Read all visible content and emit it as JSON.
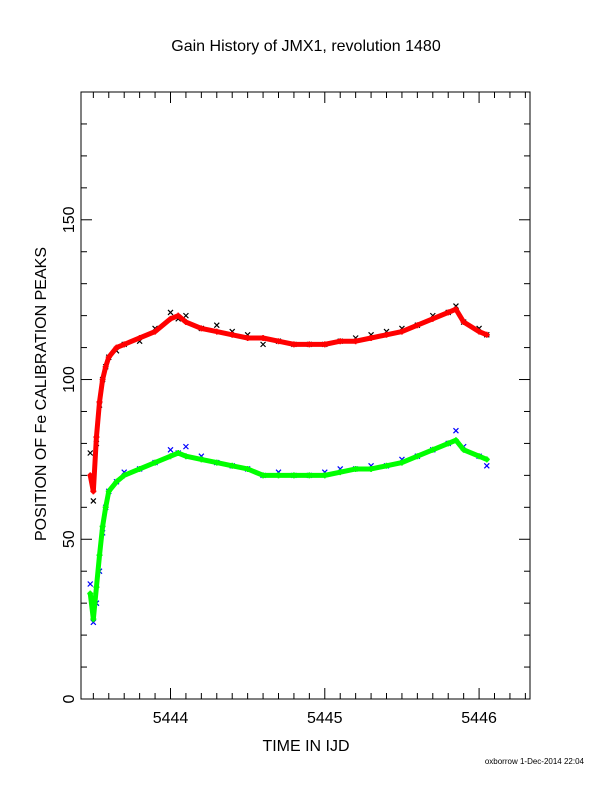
{
  "page": {
    "title": "Gain History of JMX1, revolution 1480",
    "credit": "oxborrow 1-Dec-2014 22:04"
  },
  "chart_data": {
    "type": "scatter",
    "title": "Gain History of JMX1, revolution 1480",
    "xlabel": "TIME IN IJD",
    "ylabel": "POSITION OF Fe CALIBRATION PEAKS",
    "xlim": [
      5443.42,
      5446.33
    ],
    "ylim": [
      0,
      190
    ],
    "xticks": [
      5444,
      5445,
      5446
    ],
    "xtick_labels": [
      "5444",
      "5445",
      "5446"
    ],
    "yticks": [
      0,
      50,
      100,
      150
    ],
    "ytick_labels": [
      "0",
      "50",
      "100",
      "150"
    ],
    "grid": false,
    "legend": "none",
    "series": [
      {
        "marker": "x",
        "color": "#000000",
        "kind": "scatter",
        "x": [
          5443.48,
          5443.5,
          5443.52,
          5443.54,
          5443.56,
          5443.58,
          5443.6,
          5443.65,
          5443.7,
          5443.8,
          5443.9,
          5444.0,
          5444.05,
          5444.1,
          5444.2,
          5444.3,
          5444.4,
          5444.5,
          5444.6,
          5444.7,
          5444.8,
          5444.9,
          5445.0,
          5445.1,
          5445.2,
          5445.3,
          5445.4,
          5445.5,
          5445.6,
          5445.7,
          5445.8,
          5445.85,
          5445.9,
          5446.0,
          5446.05
        ],
        "y": [
          77,
          62,
          80,
          92,
          100,
          104,
          107,
          109,
          111,
          112,
          116,
          121,
          119,
          120,
          116,
          117,
          115,
          114,
          111,
          112,
          111,
          111,
          111,
          112,
          113,
          114,
          115,
          116,
          117,
          120,
          121,
          123,
          118,
          116,
          114
        ]
      },
      {
        "marker": "+",
        "color": "#ff0000",
        "kind": "trend",
        "x": [
          5443.48,
          5443.5,
          5443.52,
          5443.54,
          5443.56,
          5443.58,
          5443.6,
          5443.65,
          5443.7,
          5443.8,
          5443.9,
          5444.0,
          5444.05,
          5444.1,
          5444.2,
          5444.3,
          5444.4,
          5444.5,
          5444.6,
          5444.7,
          5444.8,
          5444.9,
          5445.0,
          5445.1,
          5445.2,
          5445.3,
          5445.4,
          5445.5,
          5445.6,
          5445.7,
          5445.8,
          5445.85,
          5445.9,
          5446.0,
          5446.05
        ],
        "y": [
          70,
          65,
          82,
          93,
          100,
          104,
          107,
          110,
          111,
          113,
          115,
          119,
          120,
          118,
          116,
          115,
          114,
          113,
          113,
          112,
          111,
          111,
          111,
          112,
          112,
          113,
          114,
          115,
          117,
          119,
          121,
          122,
          118,
          115,
          114
        ]
      },
      {
        "marker": "x",
        "color": "#0000ff",
        "kind": "scatter",
        "x": [
          5443.48,
          5443.5,
          5443.52,
          5443.54,
          5443.56,
          5443.58,
          5443.6,
          5443.65,
          5443.7,
          5443.8,
          5443.9,
          5444.0,
          5444.05,
          5444.1,
          5444.2,
          5444.3,
          5444.4,
          5444.5,
          5444.6,
          5444.7,
          5444.8,
          5444.9,
          5445.0,
          5445.1,
          5445.2,
          5445.3,
          5445.4,
          5445.5,
          5445.6,
          5445.7,
          5445.8,
          5445.85,
          5445.9,
          5446.0,
          5446.05
        ],
        "y": [
          36,
          24,
          30,
          40,
          52,
          60,
          65,
          68,
          71,
          72,
          74,
          78,
          77,
          79,
          76,
          74,
          73,
          72,
          70,
          71,
          70,
          70,
          71,
          72,
          72,
          73,
          73,
          75,
          76,
          78,
          80,
          84,
          79,
          76,
          73
        ]
      },
      {
        "marker": "+",
        "color": "#00ff00",
        "kind": "trend",
        "x": [
          5443.48,
          5443.5,
          5443.52,
          5443.54,
          5443.56,
          5443.58,
          5443.6,
          5443.65,
          5443.7,
          5443.8,
          5443.9,
          5444.0,
          5444.05,
          5444.1,
          5444.2,
          5444.3,
          5444.4,
          5444.5,
          5444.6,
          5444.7,
          5444.8,
          5444.9,
          5445.0,
          5445.1,
          5445.2,
          5445.3,
          5445.4,
          5445.5,
          5445.6,
          5445.7,
          5445.8,
          5445.85,
          5445.9,
          5446.0,
          5446.05
        ],
        "y": [
          33,
          25,
          35,
          45,
          54,
          60,
          65,
          68,
          70,
          72,
          74,
          76,
          77,
          76,
          75,
          74,
          73,
          72,
          70,
          70,
          70,
          70,
          70,
          71,
          72,
          72,
          73,
          74,
          76,
          78,
          80,
          81,
          78,
          76,
          75
        ]
      }
    ]
  }
}
